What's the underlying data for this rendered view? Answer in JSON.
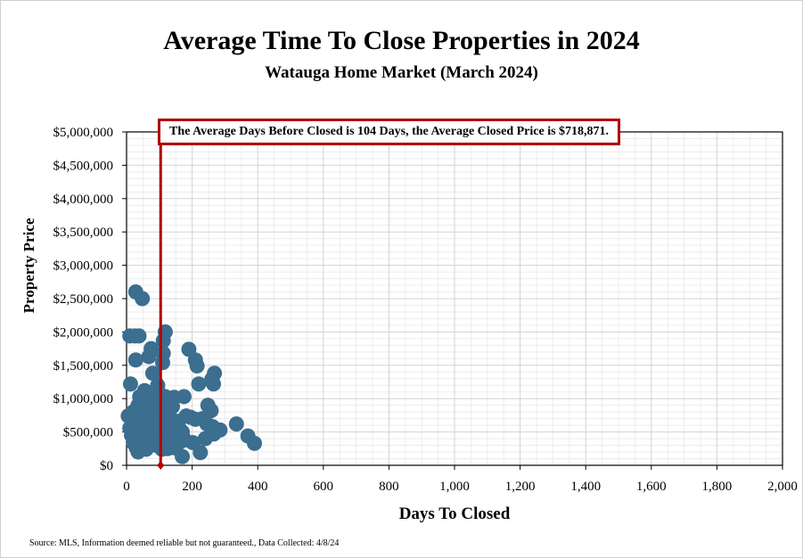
{
  "chart_data": {
    "type": "scatter",
    "title": "Average Time To Close Properties in 2024",
    "subtitle": "Watauga Home Market (March 2024)",
    "xlabel": "Days To Closed",
    "ylabel": "Property Price",
    "xlim": [
      0,
      2000
    ],
    "ylim": [
      0,
      5000000
    ],
    "x_ticks": [
      0,
      200,
      400,
      600,
      800,
      1000,
      1200,
      1400,
      1600,
      1800,
      2000
    ],
    "x_tick_labels": [
      "0",
      "200",
      "400",
      "600",
      "800",
      "1,000",
      "1,200",
      "1,400",
      "1,600",
      "1,800",
      "2,000"
    ],
    "y_ticks": [
      0,
      500000,
      1000000,
      1500000,
      2000000,
      2500000,
      3000000,
      3500000,
      4000000,
      4500000,
      5000000
    ],
    "y_tick_labels": [
      "$0",
      "$500,000",
      "$1,000,000",
      "$1,500,000",
      "$2,000,000",
      "$2,500,000",
      "$3,000,000",
      "$3,500,000",
      "$4,000,000",
      "$4,500,000",
      "$5,000,000"
    ],
    "grid": true,
    "reference_line": {
      "x": 104,
      "color": "#b20000"
    },
    "annotation": "The Average Days Before Closed is 104 Days, the Average Closed Price is $718,871.",
    "source": "Source: MLS, Information deemed reliable but not guaranteed., Data Collected: 4/8/24",
    "colors": {
      "marker": "#3b6e8f",
      "reference": "#b20000",
      "grid": "#d3d3d3"
    },
    "points": [
      {
        "x": 28,
        "y": 2600000
      },
      {
        "x": 48,
        "y": 2500000
      },
      {
        "x": 10,
        "y": 1940000
      },
      {
        "x": 25,
        "y": 1940000
      },
      {
        "x": 38,
        "y": 1940000
      },
      {
        "x": 118,
        "y": 2000000
      },
      {
        "x": 112,
        "y": 1870000
      },
      {
        "x": 75,
        "y": 1750000
      },
      {
        "x": 190,
        "y": 1740000
      },
      {
        "x": 28,
        "y": 1580000
      },
      {
        "x": 68,
        "y": 1630000
      },
      {
        "x": 112,
        "y": 1680000
      },
      {
        "x": 110,
        "y": 1540000
      },
      {
        "x": 210,
        "y": 1580000
      },
      {
        "x": 215,
        "y": 1490000
      },
      {
        "x": 268,
        "y": 1380000
      },
      {
        "x": 260,
        "y": 1290000
      },
      {
        "x": 265,
        "y": 1220000
      },
      {
        "x": 220,
        "y": 1220000
      },
      {
        "x": 80,
        "y": 1380000
      },
      {
        "x": 12,
        "y": 1220000
      },
      {
        "x": 55,
        "y": 1120000
      },
      {
        "x": 95,
        "y": 1200000
      },
      {
        "x": 100,
        "y": 1080000
      },
      {
        "x": 118,
        "y": 1030000
      },
      {
        "x": 40,
        "y": 1030000
      },
      {
        "x": 72,
        "y": 1000000
      },
      {
        "x": 145,
        "y": 1020000
      },
      {
        "x": 175,
        "y": 1030000
      },
      {
        "x": 248,
        "y": 900000
      },
      {
        "x": 258,
        "y": 820000
      },
      {
        "x": 5,
        "y": 740000
      },
      {
        "x": 18,
        "y": 780000
      },
      {
        "x": 28,
        "y": 640000
      },
      {
        "x": 42,
        "y": 860000
      },
      {
        "x": 55,
        "y": 720000
      },
      {
        "x": 63,
        "y": 560000
      },
      {
        "x": 78,
        "y": 880000
      },
      {
        "x": 88,
        "y": 680000
      },
      {
        "x": 95,
        "y": 520000
      },
      {
        "x": 105,
        "y": 800000
      },
      {
        "x": 112,
        "y": 620000
      },
      {
        "x": 120,
        "y": 460000
      },
      {
        "x": 130,
        "y": 760000
      },
      {
        "x": 140,
        "y": 580000
      },
      {
        "x": 150,
        "y": 420000
      },
      {
        "x": 158,
        "y": 660000
      },
      {
        "x": 170,
        "y": 500000
      },
      {
        "x": 182,
        "y": 740000
      },
      {
        "x": 195,
        "y": 720000
      },
      {
        "x": 210,
        "y": 690000
      },
      {
        "x": 232,
        "y": 700000
      },
      {
        "x": 245,
        "y": 620000
      },
      {
        "x": 262,
        "y": 580000
      },
      {
        "x": 275,
        "y": 520000
      },
      {
        "x": 266,
        "y": 470000
      },
      {
        "x": 285,
        "y": 530000
      },
      {
        "x": 240,
        "y": 400000
      },
      {
        "x": 202,
        "y": 340000
      },
      {
        "x": 225,
        "y": 190000
      },
      {
        "x": 170,
        "y": 130000
      },
      {
        "x": 335,
        "y": 620000
      },
      {
        "x": 370,
        "y": 440000
      },
      {
        "x": 390,
        "y": 330000
      },
      {
        "x": 10,
        "y": 560000
      },
      {
        "x": 15,
        "y": 450000
      },
      {
        "x": 22,
        "y": 330000
      },
      {
        "x": 30,
        "y": 260000
      },
      {
        "x": 35,
        "y": 200000
      },
      {
        "x": 45,
        "y": 280000
      },
      {
        "x": 52,
        "y": 380000
      },
      {
        "x": 60,
        "y": 240000
      },
      {
        "x": 70,
        "y": 320000
      },
      {
        "x": 82,
        "y": 420000
      },
      {
        "x": 90,
        "y": 300000
      },
      {
        "x": 100,
        "y": 380000
      },
      {
        "x": 108,
        "y": 240000
      },
      {
        "x": 125,
        "y": 300000
      },
      {
        "x": 135,
        "y": 380000
      },
      {
        "x": 148,
        "y": 260000
      },
      {
        "x": 160,
        "y": 340000
      },
      {
        "x": 178,
        "y": 380000
      },
      {
        "x": 125,
        "y": 250000
      },
      {
        "x": 45,
        "y": 480000
      },
      {
        "x": 65,
        "y": 820000
      },
      {
        "x": 85,
        "y": 950000
      },
      {
        "x": 100,
        "y": 900000
      },
      {
        "x": 35,
        "y": 900000
      },
      {
        "x": 20,
        "y": 800000
      },
      {
        "x": 60,
        "y": 650000
      },
      {
        "x": 140,
        "y": 880000
      },
      {
        "x": 160,
        "y": 560000
      },
      {
        "x": 115,
        "y": 540000
      },
      {
        "x": 75,
        "y": 560000
      }
    ]
  }
}
